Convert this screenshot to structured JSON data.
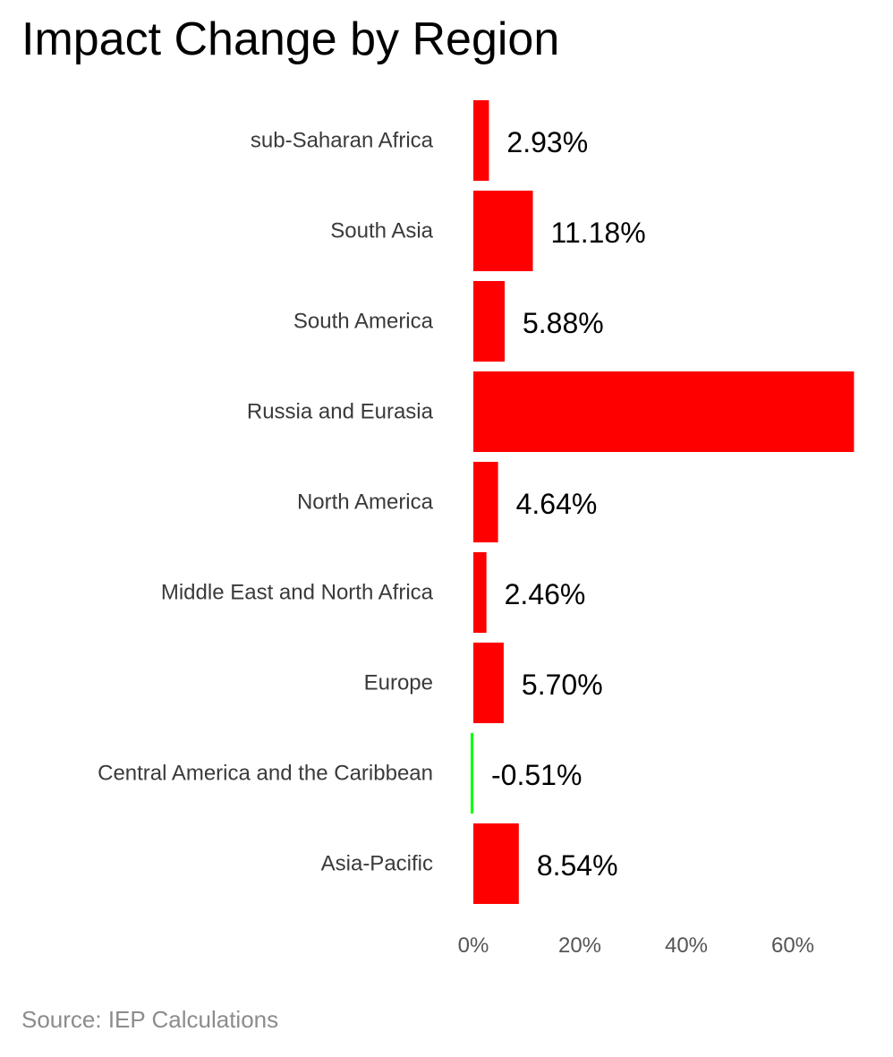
{
  "chart_data": {
    "type": "bar",
    "orientation": "horizontal",
    "title": "Impact Change by Region",
    "source": "Source: IEP Calculations",
    "categories": [
      "sub-Saharan Africa",
      "South Asia",
      "South America",
      "Russia and Eurasia",
      "North America",
      "Middle East and North Africa",
      "Europe",
      "Central America and the Caribbean",
      "Asia-Pacific"
    ],
    "values": [
      2.93,
      11.18,
      5.88,
      71.5,
      4.64,
      2.46,
      5.7,
      -0.51,
      8.54
    ],
    "data_labels": [
      "2.93%",
      "11.18%",
      "5.88%",
      "",
      "4.64%",
      "2.46%",
      "5.70%",
      "-0.51%",
      "8.54%"
    ],
    "x_ticks": [
      0,
      20,
      40,
      60
    ],
    "x_tick_labels": [
      "0%",
      "20%",
      "40%",
      "60%"
    ],
    "xlim": [
      0,
      71.5
    ],
    "grid": false,
    "legend": "none",
    "colors": {
      "positive": "#ff0000",
      "negative": "#00ff00"
    }
  }
}
